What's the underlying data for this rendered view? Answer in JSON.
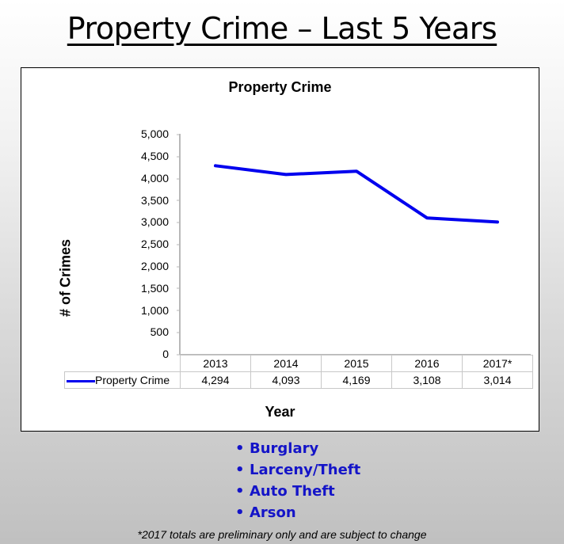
{
  "slide": {
    "title": "Property Crime – Last 5 Years",
    "bullets": [
      "Burglary",
      "Larceny/Theft",
      "Auto Theft",
      "Arson"
    ],
    "bullet_color": "#1414c8",
    "footnote": "*2017 totals are preliminary only and are subject to change"
  },
  "chart_data": {
    "type": "line",
    "title": "Property Crime",
    "xlabel": "Year",
    "ylabel": "# of Crimes",
    "categories": [
      "2013",
      "2014",
      "2015",
      "2016",
      "2017*"
    ],
    "series": [
      {
        "name": "Property Crime",
        "values": [
          4294,
          4093,
          4169,
          3108,
          3014
        ],
        "color": "#0000ee",
        "value_labels": [
          "4,294",
          "4,093",
          "4,169",
          "3,108",
          "3,014"
        ]
      }
    ],
    "ylim": [
      0,
      5000
    ],
    "yticks": [
      "5,000",
      "4,500",
      "4,000",
      "3,500",
      "3,000",
      "2,500",
      "2,000",
      "1,500",
      "1,000",
      "500",
      "0"
    ],
    "grid": false,
    "legend_position": "data-table"
  }
}
